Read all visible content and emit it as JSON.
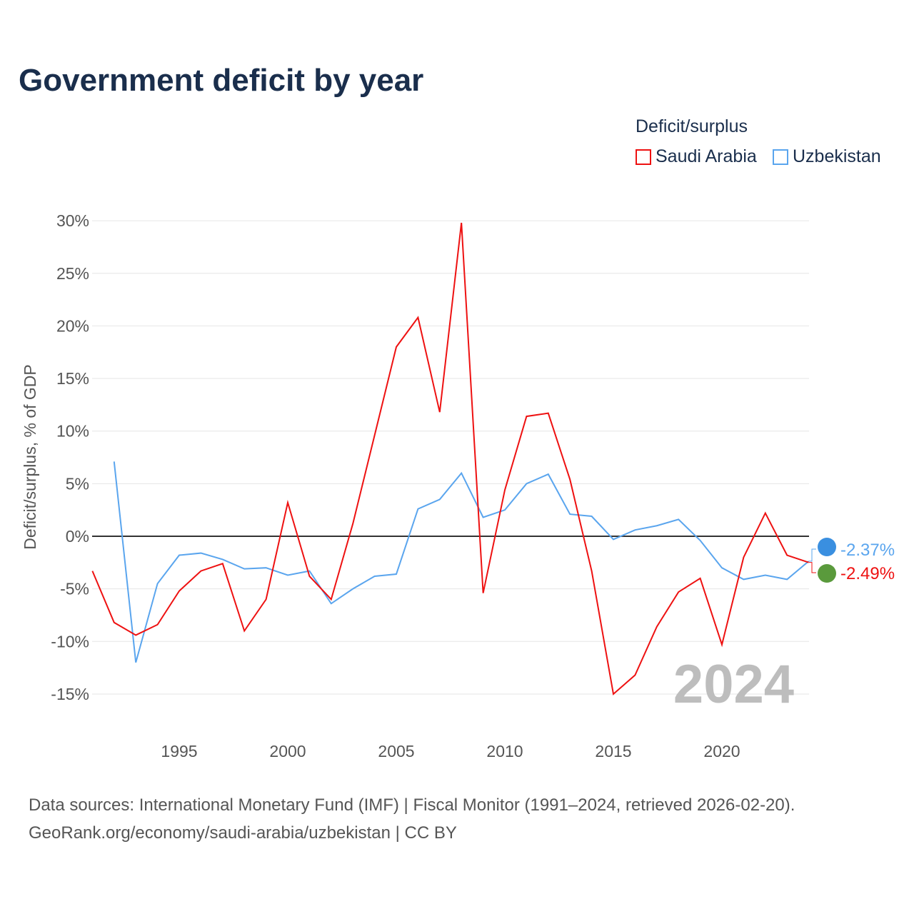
{
  "title": "Government deficit by year",
  "legend": {
    "title": "Deficit/surplus",
    "items": [
      "Saudi Arabia",
      "Uzbekistan"
    ]
  },
  "colors": {
    "Saudi Arabia": "#ee1111",
    "Uzbekistan": "#5aa5ee"
  },
  "source": {
    "line1": "Data sources: International Monetary Fund (IMF) | Fiscal Monitor (1991–2024, retrieved 2026-02-20).",
    "line2": "GeoRank.org/economy/saudi-arabia/uzbekistan | CC BY"
  },
  "chart_data": {
    "type": "line",
    "title": "Government deficit by year",
    "xlabel": "",
    "ylabel": "Deficit/surplus, % of GDP",
    "xlim": [
      1991,
      2024
    ],
    "ylim": [
      -17,
      30
    ],
    "x_ticks": [
      1995,
      2000,
      2005,
      2010,
      2015,
      2020
    ],
    "y_ticks": [
      -15,
      -10,
      -5,
      0,
      5,
      10,
      15,
      20,
      25,
      30
    ],
    "y_tick_labels": [
      "-15%",
      "-10%",
      "-5%",
      "0%",
      "5%",
      "10%",
      "15%",
      "20%",
      "25%",
      "30%"
    ],
    "grid": true,
    "legend_position": "top-right",
    "year_watermark": "2024",
    "series": [
      {
        "name": "Saudi Arabia",
        "start": 1991,
        "end_label": "-2.49%",
        "values": [
          -3.3,
          -8.2,
          -9.4,
          -8.4,
          -5.2,
          -3.3,
          -2.6,
          -9.0,
          -6.0,
          3.2,
          -3.8,
          -6.0,
          1.2,
          9.6,
          18.0,
          20.8,
          11.8,
          29.8,
          -5.4,
          4.4,
          11.4,
          11.7,
          5.4,
          -3.3,
          -15.0,
          -13.2,
          -8.6,
          -5.3,
          -4.0,
          -10.3,
          -2.0,
          2.2,
          -1.8,
          -2.49
        ]
      },
      {
        "name": "Uzbekistan",
        "start": 1992,
        "end_label": "-2.37%",
        "values": [
          7.1,
          -12.0,
          -4.5,
          -1.8,
          -1.6,
          -2.2,
          -3.1,
          -3.0,
          -3.7,
          -3.3,
          -6.4,
          -5.0,
          -3.8,
          -3.6,
          2.6,
          3.5,
          6.0,
          1.8,
          2.5,
          5.0,
          5.9,
          2.1,
          1.9,
          -0.3,
          0.6,
          1.0,
          1.6,
          -0.4,
          -3.0,
          -4.1,
          -3.7,
          -4.1,
          -2.37
        ]
      }
    ]
  }
}
